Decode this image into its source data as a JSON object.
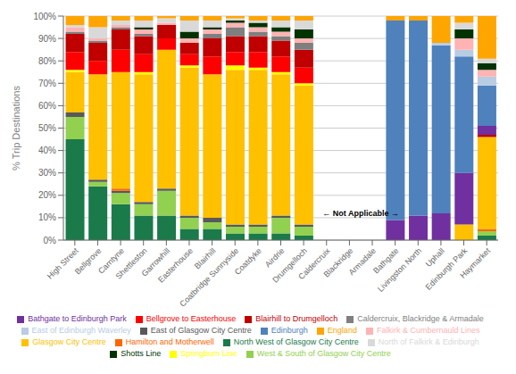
{
  "chart_data": {
    "type": "bar",
    "stacked": true,
    "ylabel": "% Trip Destinations",
    "categories": [
      "High Street",
      "Bellgrove",
      "Carntyne",
      "Shettleston",
      "Garrowhill",
      "Easterhouse",
      "Blairhill",
      "Coatbridge Sunnyside",
      "Coatdyke",
      "Airdrie",
      "Drumgelloch",
      "Caldercruix",
      "Blackridge",
      "Armadale",
      "Bathgate",
      "Livingston North",
      "Uphall",
      "Edinburgh Park",
      "Haymarket"
    ],
    "series": [
      {
        "name": "North West of Glasgow City Centre",
        "color": "#1a7a4a",
        "values": [
          45,
          24,
          16,
          11,
          11,
          5,
          5,
          3,
          3,
          3,
          2,
          0,
          0,
          0,
          0,
          0,
          0,
          0,
          2
        ]
      },
      {
        "name": "West & South of Glasgow City Centre",
        "color": "#92d050",
        "values": [
          10,
          2,
          5,
          5,
          11,
          5,
          3,
          3,
          3,
          7,
          4,
          0,
          0,
          0,
          0,
          0,
          0,
          0,
          2
        ]
      },
      {
        "name": "East of Glasgow City Centre",
        "color": "#595959",
        "values": [
          2,
          1,
          1,
          1,
          1,
          1,
          2,
          1,
          1,
          1,
          1,
          0,
          0,
          0,
          0,
          0,
          0,
          0,
          0
        ]
      },
      {
        "name": "Hamilton and Motherwell",
        "color": "#ff6600",
        "values": [
          0,
          0,
          1,
          0,
          0,
          0,
          0,
          0,
          0,
          0,
          0,
          0,
          0,
          0,
          0,
          0,
          0,
          0,
          1
        ]
      },
      {
        "name": "Glasgow City Centre",
        "color": "#ffc000",
        "values": [
          18,
          47,
          52,
          57,
          62,
          66,
          64,
          69,
          69,
          63,
          62,
          0,
          0,
          0,
          0,
          0,
          0,
          7,
          41
        ]
      },
      {
        "name": "Springburn Line",
        "color": "#ffff00",
        "values": [
          1,
          0,
          0,
          1,
          0,
          1,
          0,
          2,
          1,
          1,
          1,
          0,
          0,
          0,
          0,
          0,
          0,
          0,
          0
        ]
      },
      {
        "name": "Bellgrove to Easterhouse",
        "color": "#ff0000",
        "values": [
          8,
          6,
          10,
          8,
          5,
          5,
          8,
          6,
          7,
          7,
          7,
          0,
          0,
          0,
          0,
          0,
          0,
          0,
          0
        ]
      },
      {
        "name": "Blairhill to Drumgelloch",
        "color": "#c00000",
        "values": [
          8,
          8,
          9,
          8,
          6,
          5,
          8,
          7,
          7,
          7,
          8,
          0,
          0,
          0,
          0,
          0,
          0,
          0,
          1
        ]
      },
      {
        "name": "Caldercruix, Blackridge & Armadale",
        "color": "#7f7f7f",
        "values": [
          1,
          1,
          1,
          1,
          0,
          0,
          2,
          4,
          2,
          2,
          3,
          0,
          0,
          0,
          0,
          0,
          0,
          0,
          0
        ]
      },
      {
        "name": "Bathgate to Edinburgh Park",
        "color": "#7030a0",
        "values": [
          0,
          0,
          0,
          0,
          0,
          0,
          0,
          0,
          0,
          0,
          0,
          0,
          0,
          0,
          9,
          11,
          12,
          23,
          4
        ]
      },
      {
        "name": "Edinburgh",
        "color": "#4f81bd",
        "values": [
          0,
          0,
          0,
          0,
          0,
          0,
          0,
          0,
          0,
          0,
          0,
          0,
          0,
          0,
          89,
          87,
          75,
          52,
          18
        ]
      },
      {
        "name": "East of Edinburgh Waverley",
        "color": "#b8cce4",
        "values": [
          0,
          0,
          0,
          0,
          0,
          0,
          0,
          0,
          0,
          0,
          0,
          0,
          0,
          0,
          0,
          0,
          1,
          3,
          4
        ]
      },
      {
        "name": "Falkirk & Cumbernauld Lines",
        "color": "#ffb3b3",
        "values": [
          2,
          1,
          1,
          2,
          1,
          2,
          2,
          2,
          2,
          2,
          2,
          0,
          0,
          0,
          0,
          0,
          0,
          5,
          3
        ]
      },
      {
        "name": "Shotts Line",
        "color": "#003300",
        "values": [
          0,
          0,
          0,
          1,
          0,
          3,
          1,
          1,
          2,
          2,
          4,
          0,
          0,
          0,
          0,
          0,
          0,
          4,
          3
        ]
      },
      {
        "name": "North of Falkirk & Edinburgh",
        "color": "#d9d9d9",
        "values": [
          1,
          5,
          2,
          3,
          2,
          5,
          3,
          1,
          1,
          3,
          4,
          0,
          0,
          0,
          0,
          0,
          0,
          3,
          2
        ]
      },
      {
        "name": "England",
        "color": "#ffa500",
        "values": [
          4,
          5,
          2,
          2,
          1,
          2,
          2,
          1,
          2,
          2,
          2,
          0,
          0,
          0,
          2,
          2,
          12,
          3,
          19
        ]
      }
    ],
    "ylim": [
      0,
      100
    ],
    "yticks": [
      {
        "value": 0,
        "label": "0%"
      },
      {
        "value": 10,
        "label": "10%"
      },
      {
        "value": 20,
        "label": "20%"
      },
      {
        "value": 30,
        "label": "30%"
      },
      {
        "value": 40,
        "label": "40%"
      },
      {
        "value": 50,
        "label": "50%"
      },
      {
        "value": 60,
        "label": "60%"
      },
      {
        "value": 70,
        "label": "70%"
      },
      {
        "value": 80,
        "label": "80%"
      },
      {
        "value": 90,
        "label": "90%"
      },
      {
        "value": 100,
        "label": "100%"
      }
    ],
    "grid": true,
    "legend": "bottom",
    "annotations": [
      {
        "text": "←  Not Applicable  →",
        "x": [
          "Blackridge",
          "Armadale"
        ],
        "y": 12
      }
    ]
  }
}
